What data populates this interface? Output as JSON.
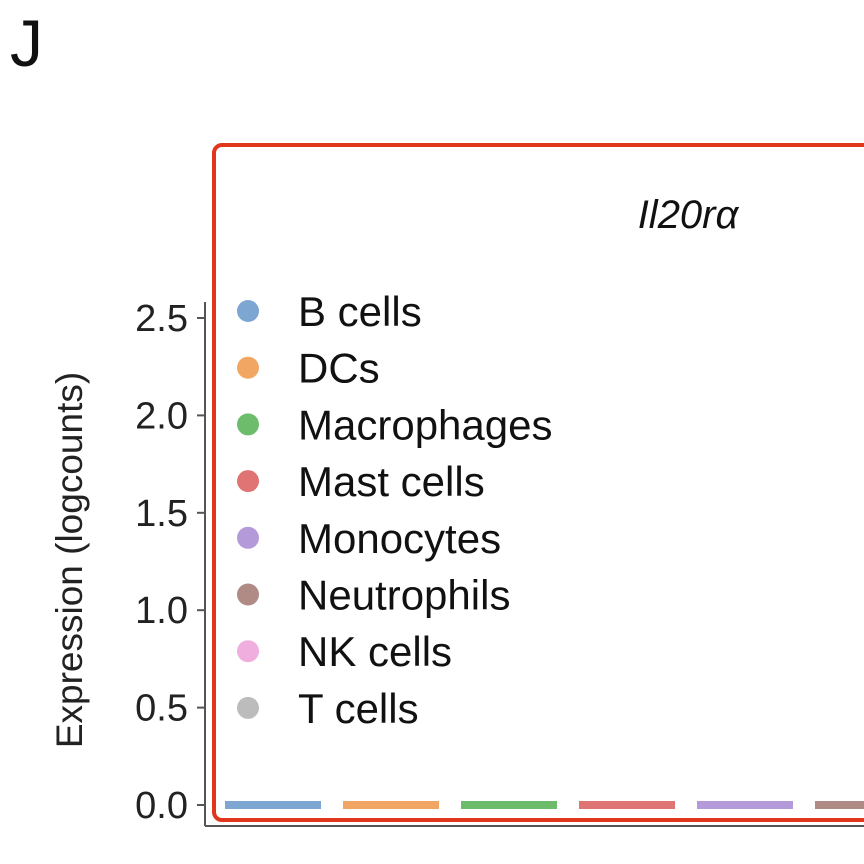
{
  "panel_label": "J",
  "chart_data": {
    "type": "scatter",
    "title": "Il20rα",
    "xlabel": "",
    "ylabel": "Expression (logcounts)",
    "ylim": [
      0,
      2.5
    ],
    "yticks": [
      "0.0",
      "0.5",
      "1.0",
      "1.5",
      "2.0",
      "2.5"
    ],
    "grid": false,
    "legend_position": "top-left",
    "highlight_box_color": "#e0361c",
    "categories": [
      "B cells",
      "DCs",
      "Macrophages",
      "Mast cells",
      "Monocytes",
      "Neutrophils",
      "NK cells",
      "T cells"
    ],
    "series": [
      {
        "name": "B cells",
        "color": "#7ea6d3",
        "values": [
          0
        ]
      },
      {
        "name": "DCs",
        "color": "#f2a664",
        "values": [
          0
        ]
      },
      {
        "name": "Macrophages",
        "color": "#6cbc6c",
        "values": [
          0
        ]
      },
      {
        "name": "Mast cells",
        "color": "#e07474",
        "values": [
          0
        ]
      },
      {
        "name": "Monocytes",
        "color": "#b49ad8",
        "values": [
          0
        ]
      },
      {
        "name": "Neutrophils",
        "color": "#b08a84",
        "values": [
          0
        ]
      },
      {
        "name": "NK cells",
        "color": "#f0aede",
        "values": [
          0
        ]
      },
      {
        "name": "T cells",
        "color": "#bcbcbc",
        "values": [
          0
        ]
      }
    ]
  }
}
